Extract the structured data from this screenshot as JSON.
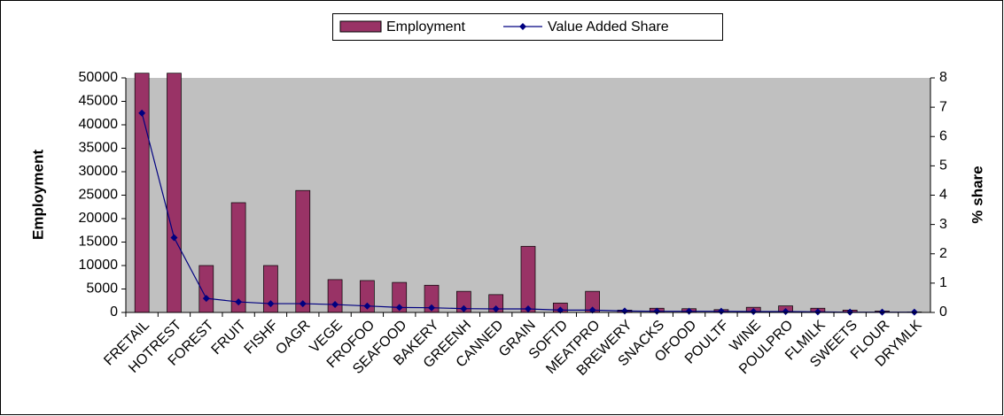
{
  "chart_data": {
    "type": "bar_line",
    "categories": [
      "FRETAIL",
      "HOTREST",
      "FOREST",
      "FRUIT",
      "FISHF",
      "OAGR",
      "VEGE",
      "FROFOO",
      "SEAFOOD",
      "BAKERY",
      "GREENH",
      "CANNED",
      "GRAIN",
      "SOFTD",
      "MEATPRO",
      "BREWERY",
      "SNACKS",
      "OFOOD",
      "POULTF",
      "WINE",
      "POULPRO",
      "FLMILK",
      "SWEETS",
      "FLOUR",
      "DRYMLK"
    ],
    "series": [
      {
        "name": "Employment",
        "type": "bar",
        "color": "#993366",
        "values": [
          51000,
          51000,
          10000,
          23400,
          10000,
          26000,
          7000,
          6800,
          6400,
          5800,
          4500,
          3800,
          14100,
          2000,
          4500,
          500,
          900,
          800,
          600,
          1100,
          1400,
          900,
          500,
          300,
          100
        ]
      },
      {
        "name": "Value Added Share",
        "type": "line",
        "axis": "y2",
        "color": "#000080",
        "values": [
          6.8,
          2.55,
          0.48,
          0.36,
          0.3,
          0.3,
          0.27,
          0.22,
          0.17,
          0.16,
          0.13,
          0.12,
          0.12,
          0.08,
          0.08,
          0.05,
          0.04,
          0.04,
          0.04,
          0.03,
          0.03,
          0.02,
          0.01,
          0.01,
          0.01
        ]
      }
    ],
    "ylabel": "Employment",
    "y2label": "% share",
    "ylim": [
      0,
      50000
    ],
    "yticks": [
      0,
      5000,
      10000,
      15000,
      20000,
      25000,
      30000,
      35000,
      40000,
      45000,
      50000
    ],
    "y2lim": [
      0,
      8
    ],
    "y2ticks": [
      0,
      1,
      2,
      3,
      4,
      5,
      6,
      7,
      8
    ],
    "legend": "top"
  }
}
